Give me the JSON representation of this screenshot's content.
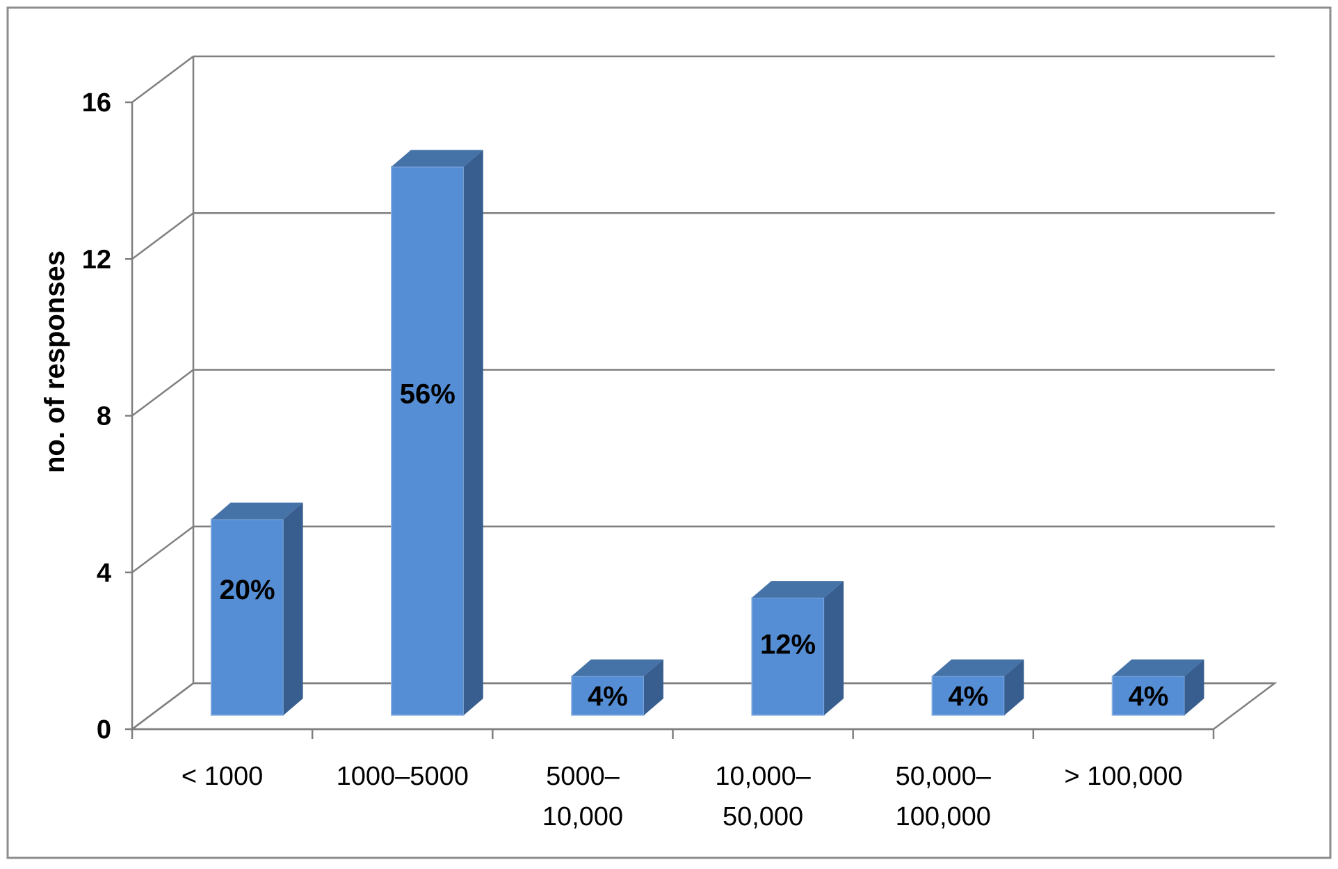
{
  "chart_data": {
    "type": "bar",
    "style": "3d-column",
    "categories": [
      [
        "< 1000"
      ],
      [
        "1000–5000"
      ],
      [
        "5000–",
        "10,000"
      ],
      [
        "10,000–",
        "50,000"
      ],
      [
        "50,000–",
        "100,000"
      ],
      [
        "> 100,000"
      ]
    ],
    "values": [
      5,
      14,
      1,
      3,
      1,
      1
    ],
    "data_labels": [
      "20%",
      "56%",
      "4%",
      "12%",
      "4%",
      "4%"
    ],
    "title": "",
    "xlabel": "",
    "ylabel": "no. of responses",
    "ylim": [
      0,
      16
    ],
    "yticks": [
      0,
      4,
      8,
      12,
      16
    ],
    "grid": true,
    "colors": {
      "bar_front": "#558ed5",
      "bar_top": "#4572a7",
      "bar_side": "#375e8e",
      "gridline": "#7f7f7f",
      "frame": "#7f7f7f"
    }
  }
}
